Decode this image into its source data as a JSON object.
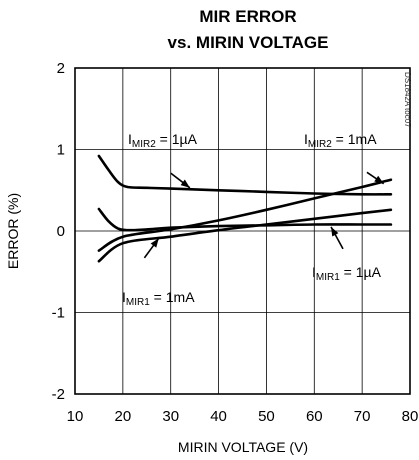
{
  "chart_data": {
    "type": "line",
    "title_lines": [
      "MIR ERROR",
      "vs. MIRIN VOLTAGE"
    ],
    "xlabel": "MIRIN VOLTAGE (V)",
    "ylabel": "ERROR (%)",
    "xlim": [
      10,
      80
    ],
    "ylim": [
      -2,
      2
    ],
    "x_ticks": [
      "10",
      "20",
      "30",
      "40",
      "50",
      "60",
      "70",
      "80"
    ],
    "y_ticks": [
      "2",
      "1",
      "0",
      "-1",
      "-2"
    ],
    "grid": true,
    "figure_code": "DS1842A toc07",
    "series": [
      {
        "name": "IMIR2 = 1µA",
        "x": [
          15,
          17,
          19,
          21,
          25,
          30,
          40,
          50,
          60,
          70,
          76
        ],
        "y": [
          0.92,
          0.75,
          0.6,
          0.54,
          0.53,
          0.52,
          0.5,
          0.48,
          0.46,
          0.45,
          0.45
        ]
      },
      {
        "name": "IMIR2 = 1mA",
        "x": [
          15,
          20,
          30,
          40,
          50,
          60,
          70,
          76
        ],
        "y": [
          -0.24,
          -0.07,
          0.02,
          0.13,
          0.26,
          0.4,
          0.54,
          0.63
        ]
      },
      {
        "name": "IMIR1 = 1µA",
        "x": [
          15,
          17,
          19,
          21,
          25,
          30,
          40,
          50,
          60,
          70,
          76
        ],
        "y": [
          0.27,
          0.12,
          0.03,
          0.01,
          0.02,
          0.04,
          0.06,
          0.07,
          0.08,
          0.08,
          0.08
        ]
      },
      {
        "name": "IMIR1 = 1mA",
        "x": [
          15,
          20,
          30,
          40,
          50,
          60,
          70,
          76
        ],
        "y": [
          -0.37,
          -0.15,
          -0.07,
          0.01,
          0.08,
          0.15,
          0.22,
          0.26
        ]
      }
    ],
    "annotations": [
      {
        "main": "I",
        "sub": "MIR2",
        "rest": " = 1µA"
      },
      {
        "main": "I",
        "sub": "MIR2",
        "rest": " = 1mA"
      },
      {
        "main": "I",
        "sub": "MIR1",
        "rest": " = 1µA"
      },
      {
        "main": "I",
        "sub": "MIR1",
        "rest": " = 1mA"
      }
    ]
  }
}
